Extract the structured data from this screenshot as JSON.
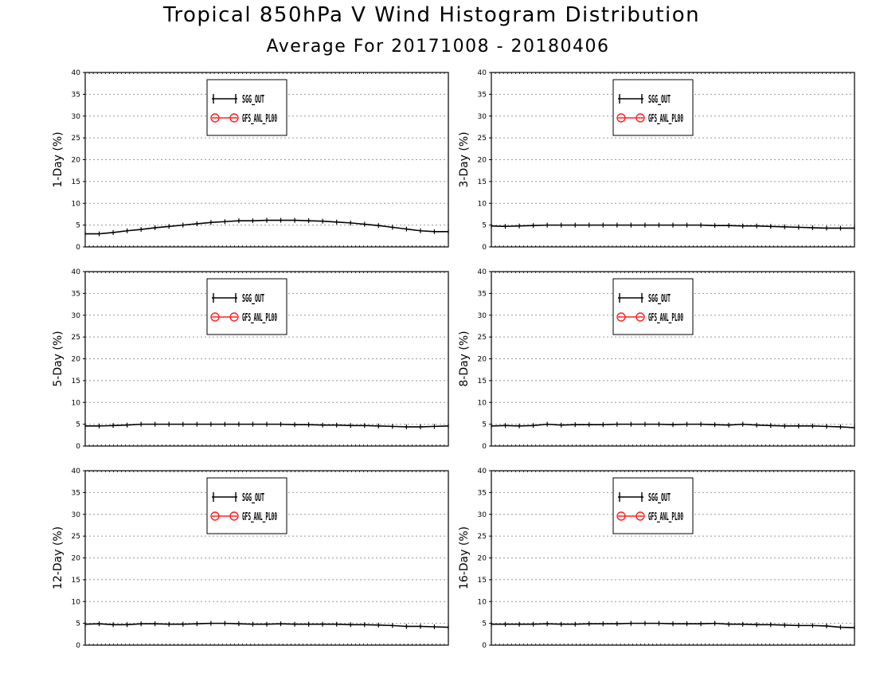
{
  "title": "Tropical 850hPa V Wind Histogram Distribution",
  "subtitle": "Average For 20171008 - 20180406",
  "chart_data": [
    {
      "type": "line",
      "ylabel": "1-Day (%)",
      "ylim": [
        0,
        40
      ],
      "yticks": [
        0,
        5,
        10,
        15,
        20,
        25,
        30,
        35,
        40
      ],
      "grid": true,
      "legend": {
        "placement": "top-center",
        "entries": [
          "SGG_OUT",
          "GFS_ANL_PL00"
        ]
      },
      "colors": {
        "SGG_OUT": "#000000",
        "GFS_ANL_PL00": "#ff2020"
      },
      "series": [
        {
          "name": "SGG_OUT",
          "values": [
            3.0,
            3.0,
            3.3,
            3.7,
            4.0,
            4.4,
            4.7,
            5.0,
            5.3,
            5.6,
            5.8,
            6.0,
            6.0,
            6.1,
            6.1,
            6.1,
            6.0,
            5.9,
            5.7,
            5.5,
            5.2,
            4.9,
            4.5,
            4.1,
            3.7,
            3.5,
            3.5
          ]
        },
        {
          "name": "GFS_ANL_PL00",
          "values": []
        }
      ]
    },
    {
      "type": "line",
      "ylabel": "3-Day (%)",
      "ylim": [
        0,
        40
      ],
      "yticks": [
        0,
        5,
        10,
        15,
        20,
        25,
        30,
        35,
        40
      ],
      "grid": true,
      "legend": {
        "placement": "top-center",
        "entries": [
          "SGG_OUT",
          "GFS_ANL_PL00"
        ]
      },
      "colors": {
        "SGG_OUT": "#000000",
        "GFS_ANL_PL00": "#ff2020"
      },
      "series": [
        {
          "name": "SGG_OUT",
          "values": [
            4.8,
            4.7,
            4.8,
            4.9,
            5.0,
            5.0,
            5.0,
            5.0,
            5.0,
            5.0,
            5.0,
            5.0,
            5.0,
            5.0,
            5.0,
            5.0,
            4.9,
            4.9,
            4.8,
            4.8,
            4.7,
            4.6,
            4.5,
            4.4,
            4.3,
            4.3,
            4.3
          ]
        },
        {
          "name": "GFS_ANL_PL00",
          "values": []
        }
      ]
    },
    {
      "type": "line",
      "ylabel": "5-Day (%)",
      "ylim": [
        0,
        40
      ],
      "yticks": [
        0,
        5,
        10,
        15,
        20,
        25,
        30,
        35,
        40
      ],
      "grid": true,
      "legend": {
        "placement": "top-center",
        "entries": [
          "SGG_OUT",
          "GFS_ANL_PL00"
        ]
      },
      "colors": {
        "SGG_OUT": "#000000",
        "GFS_ANL_PL00": "#ff2020"
      },
      "series": [
        {
          "name": "SGG_OUT",
          "values": [
            4.6,
            4.6,
            4.7,
            4.8,
            5.0,
            5.0,
            5.0,
            5.0,
            5.0,
            5.0,
            5.0,
            5.0,
            5.0,
            5.0,
            5.0,
            4.9,
            4.9,
            4.8,
            4.8,
            4.7,
            4.7,
            4.6,
            4.5,
            4.4,
            4.4,
            4.5,
            4.6
          ]
        },
        {
          "name": "GFS_ANL_PL00",
          "values": []
        }
      ]
    },
    {
      "type": "line",
      "ylabel": "8-Day (%)",
      "ylim": [
        0,
        40
      ],
      "yticks": [
        0,
        5,
        10,
        15,
        20,
        25,
        30,
        35,
        40
      ],
      "grid": true,
      "legend": {
        "placement": "top-center",
        "entries": [
          "SGG_OUT",
          "GFS_ANL_PL00"
        ]
      },
      "colors": {
        "SGG_OUT": "#000000",
        "GFS_ANL_PL00": "#ff2020"
      },
      "series": [
        {
          "name": "SGG_OUT",
          "values": [
            4.6,
            4.7,
            4.6,
            4.7,
            5.0,
            4.8,
            4.9,
            4.9,
            4.9,
            5.0,
            5.0,
            5.0,
            5.0,
            4.9,
            5.0,
            5.0,
            4.9,
            4.8,
            5.0,
            4.8,
            4.7,
            4.6,
            4.6,
            4.6,
            4.5,
            4.4,
            4.2
          ]
        },
        {
          "name": "GFS_ANL_PL00",
          "values": []
        }
      ]
    },
    {
      "type": "line",
      "ylabel": "12-Day (%)",
      "ylim": [
        0,
        40
      ],
      "yticks": [
        0,
        5,
        10,
        15,
        20,
        25,
        30,
        35,
        40
      ],
      "grid": true,
      "legend": {
        "placement": "top-center",
        "entries": [
          "SGG_OUT",
          "GFS_ANL_PL00"
        ]
      },
      "colors": {
        "SGG_OUT": "#000000",
        "GFS_ANL_PL00": "#ff2020"
      },
      "series": [
        {
          "name": "SGG_OUT",
          "values": [
            4.8,
            4.9,
            4.7,
            4.7,
            4.9,
            4.9,
            4.8,
            4.8,
            4.9,
            5.0,
            5.0,
            4.9,
            4.8,
            4.8,
            4.9,
            4.8,
            4.8,
            4.8,
            4.8,
            4.7,
            4.7,
            4.6,
            4.5,
            4.3,
            4.3,
            4.2,
            4.1
          ]
        },
        {
          "name": "GFS_ANL_PL00",
          "values": []
        }
      ]
    },
    {
      "type": "line",
      "ylabel": "16-Day (%)",
      "ylim": [
        0,
        40
      ],
      "yticks": [
        0,
        5,
        10,
        15,
        20,
        25,
        30,
        35,
        40
      ],
      "grid": true,
      "legend": {
        "placement": "top-center",
        "entries": [
          "SGG_OUT",
          "GFS_ANL_PL00"
        ]
      },
      "colors": {
        "SGG_OUT": "#000000",
        "GFS_ANL_PL00": "#ff2020"
      },
      "series": [
        {
          "name": "SGG_OUT",
          "values": [
            4.8,
            4.8,
            4.8,
            4.8,
            4.9,
            4.8,
            4.8,
            4.9,
            4.9,
            4.9,
            5.0,
            5.0,
            5.0,
            4.9,
            4.9,
            4.9,
            5.0,
            4.8,
            4.8,
            4.7,
            4.7,
            4.6,
            4.5,
            4.5,
            4.4,
            4.1,
            4.0
          ]
        },
        {
          "name": "GFS_ANL_PL00",
          "values": []
        }
      ]
    }
  ]
}
